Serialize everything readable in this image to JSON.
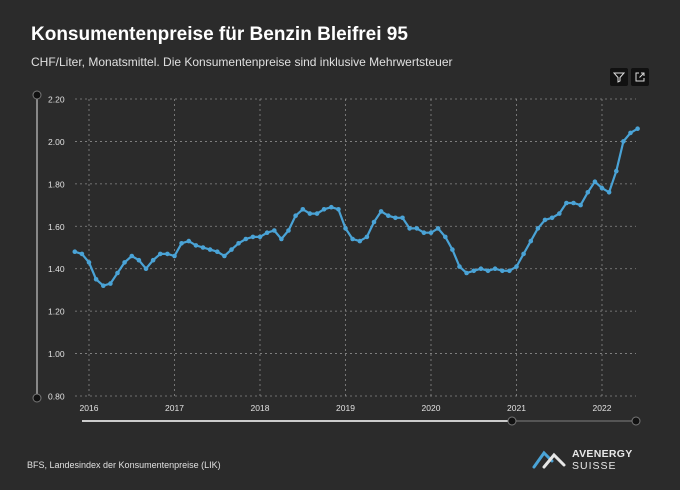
{
  "header": {
    "title": "Konsumentenpreise für Benzin Bleifrei 95",
    "subtitle": "CHF/Liter, Monatsmittel. Die Konsumentenpreise sind inklusive Mehrwertsteuer"
  },
  "toolbar": {
    "filter_icon": "filter-icon",
    "expand_icon": "expand-icon"
  },
  "footer": {
    "source": "BFS, Landesindex der Konsumentenpreise (LIK)"
  },
  "logo": {
    "line1": "AVENERGY",
    "line2": "SUISSE"
  },
  "colors": {
    "background": "#2b2b2b",
    "line": "#4aa3d6",
    "grid": "#8a8a8a"
  },
  "chart_data": {
    "type": "line",
    "title": "Konsumentenpreise für Benzin Bleifrei 95",
    "xlabel": "",
    "ylabel": "",
    "ylim": [
      0.8,
      2.2
    ],
    "yticks": [
      "0.80",
      "1.00",
      "1.20",
      "1.40",
      "1.60",
      "1.80",
      "2.00",
      "2.20"
    ],
    "xticks": [
      "2016",
      "2017",
      "2018",
      "2019",
      "2020",
      "2021",
      "2022"
    ],
    "grid": true,
    "start": "2015-11",
    "series": [
      {
        "values": [
          1.48,
          1.47,
          1.43,
          1.35,
          1.32,
          1.33,
          1.38,
          1.43,
          1.46,
          1.44,
          1.4,
          1.44,
          1.47,
          1.47,
          1.46,
          1.52,
          1.53,
          1.51,
          1.5,
          1.49,
          1.48,
          1.46,
          1.49,
          1.52,
          1.54,
          1.55,
          1.55,
          1.57,
          1.58,
          1.54,
          1.58,
          1.65,
          1.68,
          1.66,
          1.66,
          1.68,
          1.69,
          1.68,
          1.59,
          1.54,
          1.53,
          1.55,
          1.62,
          1.67,
          1.65,
          1.64,
          1.64,
          1.59,
          1.59,
          1.57,
          1.57,
          1.59,
          1.55,
          1.49,
          1.41,
          1.38,
          1.39,
          1.4,
          1.39,
          1.4,
          1.39,
          1.39,
          1.41,
          1.47,
          1.53,
          1.59,
          1.63,
          1.64,
          1.66,
          1.71,
          1.71,
          1.7,
          1.76,
          1.81,
          1.78,
          1.76,
          1.86,
          2.0,
          2.04,
          2.06
        ]
      }
    ]
  }
}
